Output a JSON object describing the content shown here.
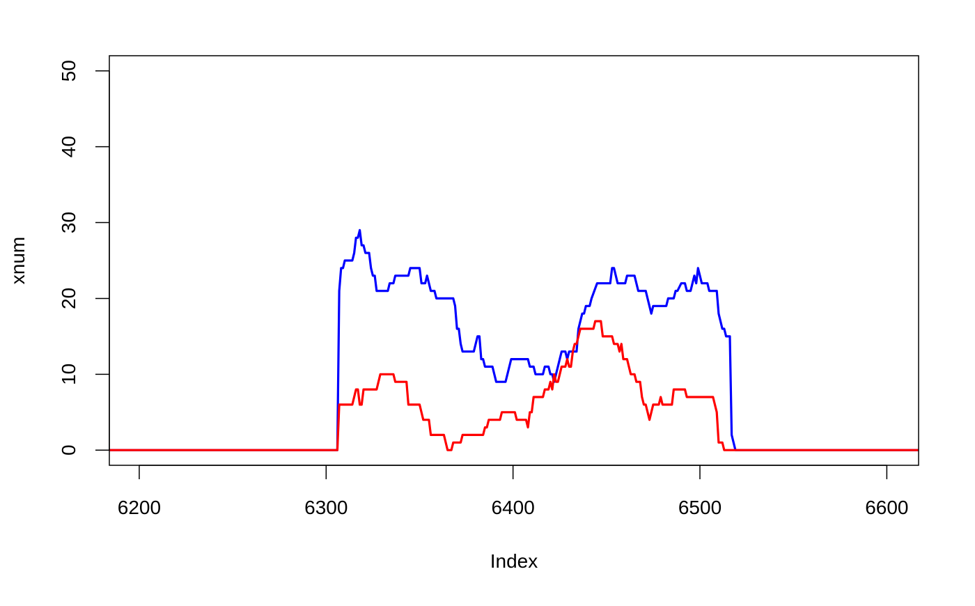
{
  "chart_data": {
    "type": "line",
    "title": "",
    "xlabel": "Index",
    "ylabel": "xnum",
    "xlim": [
      6184,
      6617
    ],
    "ylim": [
      -2,
      52
    ],
    "x_ticks": [
      6200,
      6300,
      6400,
      6500,
      6600
    ],
    "y_ticks": [
      0,
      10,
      20,
      30,
      40,
      50
    ],
    "grid": false,
    "legend": "none",
    "series": [
      {
        "color": "#0000ff",
        "points": [
          [
            6184,
            0
          ],
          [
            6306,
            0
          ],
          [
            6307,
            21
          ],
          [
            6308,
            24
          ],
          [
            6309,
            24
          ],
          [
            6310,
            25
          ],
          [
            6314,
            25
          ],
          [
            6315,
            26
          ],
          [
            6316,
            28
          ],
          [
            6317,
            28
          ],
          [
            6318,
            29
          ],
          [
            6319,
            27
          ],
          [
            6320,
            27
          ],
          [
            6321,
            26
          ],
          [
            6323,
            26
          ],
          [
            6324,
            24
          ],
          [
            6325,
            23
          ],
          [
            6326,
            23
          ],
          [
            6327,
            21
          ],
          [
            6333,
            21
          ],
          [
            6334,
            22
          ],
          [
            6336,
            22
          ],
          [
            6337,
            23
          ],
          [
            6344,
            23
          ],
          [
            6345,
            24
          ],
          [
            6350,
            24
          ],
          [
            6351,
            22
          ],
          [
            6353,
            22
          ],
          [
            6354,
            23
          ],
          [
            6356,
            21
          ],
          [
            6358,
            21
          ],
          [
            6359,
            20
          ],
          [
            6368,
            20
          ],
          [
            6369,
            19
          ],
          [
            6370,
            16
          ],
          [
            6371,
            16
          ],
          [
            6372,
            14
          ],
          [
            6373,
            13
          ],
          [
            6379,
            13
          ],
          [
            6381,
            15
          ],
          [
            6382,
            15
          ],
          [
            6383,
            12
          ],
          [
            6384,
            12
          ],
          [
            6385,
            11
          ],
          [
            6389,
            11
          ],
          [
            6391,
            9
          ],
          [
            6396,
            9
          ],
          [
            6399,
            12
          ],
          [
            6408,
            12
          ],
          [
            6409,
            11
          ],
          [
            6411,
            11
          ],
          [
            6412,
            10
          ],
          [
            6416,
            10
          ],
          [
            6417,
            11
          ],
          [
            6419,
            11
          ],
          [
            6420,
            10
          ],
          [
            6421,
            10
          ],
          [
            6422,
            9
          ],
          [
            6426,
            13
          ],
          [
            6428,
            13
          ],
          [
            6429,
            12
          ],
          [
            6430,
            13
          ],
          [
            6434,
            13
          ],
          [
            6435,
            16
          ],
          [
            6437,
            18
          ],
          [
            6438,
            18
          ],
          [
            6439,
            19
          ],
          [
            6441,
            19
          ],
          [
            6442,
            20
          ],
          [
            6445,
            22
          ],
          [
            6452,
            22
          ],
          [
            6453,
            24
          ],
          [
            6454,
            24
          ],
          [
            6456,
            22
          ],
          [
            6460,
            22
          ],
          [
            6461,
            23
          ],
          [
            6465,
            23
          ],
          [
            6467,
            21
          ],
          [
            6471,
            21
          ],
          [
            6474,
            18
          ],
          [
            6475,
            19
          ],
          [
            6482,
            19
          ],
          [
            6483,
            20
          ],
          [
            6486,
            20
          ],
          [
            6487,
            21
          ],
          [
            6488,
            21
          ],
          [
            6490,
            22
          ],
          [
            6492,
            22
          ],
          [
            6493,
            21
          ],
          [
            6495,
            21
          ],
          [
            6497,
            23
          ],
          [
            6498,
            22
          ],
          [
            6499,
            24
          ],
          [
            6501,
            22
          ],
          [
            6504,
            22
          ],
          [
            6505,
            21
          ],
          [
            6509,
            21
          ],
          [
            6510,
            18
          ],
          [
            6512,
            16
          ],
          [
            6513,
            16
          ],
          [
            6514,
            15
          ],
          [
            6516,
            15
          ],
          [
            6517,
            2
          ],
          [
            6519,
            0
          ],
          [
            6617,
            0
          ]
        ]
      },
      {
        "color": "#ff0000",
        "points": [
          [
            6184,
            0
          ],
          [
            6306,
            0
          ],
          [
            6307,
            6
          ],
          [
            6314,
            6
          ],
          [
            6316,
            8
          ],
          [
            6317,
            8
          ],
          [
            6318,
            6
          ],
          [
            6319,
            6
          ],
          [
            6320,
            8
          ],
          [
            6327,
            8
          ],
          [
            6329,
            10
          ],
          [
            6336,
            10
          ],
          [
            6337,
            9
          ],
          [
            6343,
            9
          ],
          [
            6344,
            6
          ],
          [
            6350,
            6
          ],
          [
            6352,
            4
          ],
          [
            6355,
            4
          ],
          [
            6356,
            2
          ],
          [
            6363,
            2
          ],
          [
            6365,
            0
          ],
          [
            6367,
            0
          ],
          [
            6368,
            1
          ],
          [
            6372,
            1
          ],
          [
            6373,
            2
          ],
          [
            6384,
            2
          ],
          [
            6385,
            3
          ],
          [
            6386,
            3
          ],
          [
            6387,
            4
          ],
          [
            6393,
            4
          ],
          [
            6394,
            5
          ],
          [
            6401,
            5
          ],
          [
            6402,
            4
          ],
          [
            6407,
            4
          ],
          [
            6408,
            3
          ],
          [
            6409,
            5
          ],
          [
            6410,
            5
          ],
          [
            6411,
            7
          ],
          [
            6416,
            7
          ],
          [
            6417,
            8
          ],
          [
            6419,
            8
          ],
          [
            6420,
            9
          ],
          [
            6421,
            8
          ],
          [
            6422,
            10
          ],
          [
            6423,
            9
          ],
          [
            6424,
            9
          ],
          [
            6426,
            11
          ],
          [
            6428,
            11
          ],
          [
            6429,
            12
          ],
          [
            6430,
            11
          ],
          [
            6431,
            11
          ],
          [
            6432,
            13
          ],
          [
            6433,
            14
          ],
          [
            6434,
            14
          ],
          [
            6435,
            15
          ],
          [
            6436,
            16
          ],
          [
            6443,
            16
          ],
          [
            6444,
            17
          ],
          [
            6447,
            17
          ],
          [
            6448,
            15
          ],
          [
            6453,
            15
          ],
          [
            6454,
            14
          ],
          [
            6456,
            14
          ],
          [
            6457,
            13
          ],
          [
            6458,
            14
          ],
          [
            6459,
            12
          ],
          [
            6461,
            12
          ],
          [
            6463,
            10
          ],
          [
            6465,
            10
          ],
          [
            6466,
            9
          ],
          [
            6468,
            9
          ],
          [
            6469,
            7
          ],
          [
            6470,
            6
          ],
          [
            6471,
            6
          ],
          [
            6473,
            4
          ],
          [
            6475,
            6
          ],
          [
            6478,
            6
          ],
          [
            6479,
            7
          ],
          [
            6480,
            6
          ],
          [
            6485,
            6
          ],
          [
            6486,
            8
          ],
          [
            6492,
            8
          ],
          [
            6493,
            7
          ],
          [
            6507,
            7
          ],
          [
            6509,
            5
          ],
          [
            6510,
            1
          ],
          [
            6512,
            1
          ],
          [
            6513,
            0
          ],
          [
            6617,
            0
          ]
        ]
      }
    ]
  }
}
